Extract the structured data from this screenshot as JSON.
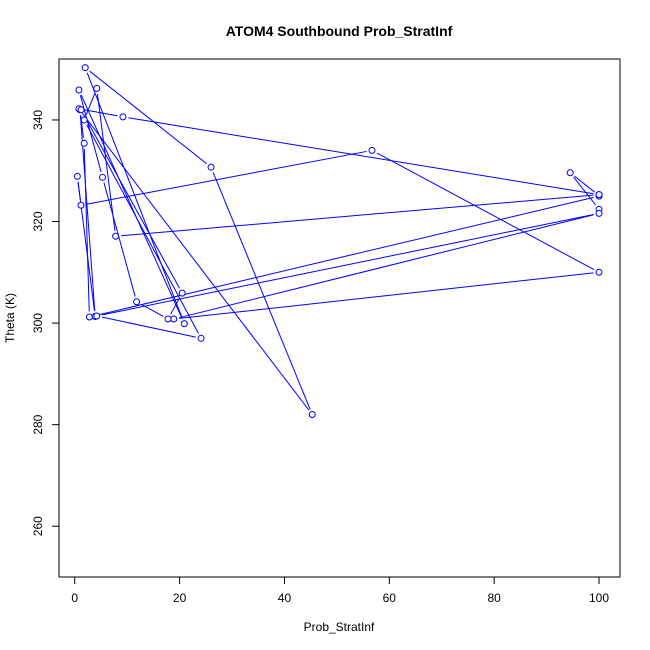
{
  "chart_data": {
    "type": "line",
    "title": "ATOM4 Southbound Prob_StratInf",
    "xlabel": "Prob_StratInf",
    "ylabel": "Theta (K)",
    "xlim": [
      -3,
      104
    ],
    "ylim": [
      250,
      352
    ],
    "x_ticks": [
      0,
      20,
      40,
      60,
      80,
      100
    ],
    "y_ticks": [
      260,
      280,
      300,
      320,
      340
    ],
    "grid": false,
    "marker": "open-circle",
    "color": "#0000ff",
    "series": [
      {
        "x": [
          100,
          94.5,
          100,
          100,
          100,
          2.8,
          1.8,
          1.0,
          3.9,
          0.5,
          1.2,
          56.7,
          100,
          18.9,
          100,
          4.2,
          24.1,
          1.8,
          4.2,
          7.8,
          100,
          9.2,
          0.8,
          45.3,
          26.0,
          2.0,
          20.9,
          0.8,
          5.3,
          11.8,
          17.8,
          20.5,
          1.2
        ],
        "y": [
          322.4,
          329.6,
          325.1,
          325.3,
          325.0,
          301.2,
          335.4,
          342.0,
          301.3,
          328.9,
          323.2,
          334.0,
          310.0,
          300.8,
          321.6,
          301.4,
          297.0,
          340.0,
          346.2,
          317.1,
          325.3,
          340.6,
          342.2,
          282.0,
          330.7,
          350.3,
          299.9,
          345.9,
          328.7,
          304.2,
          300.8,
          305.9,
          342.0
        ]
      }
    ]
  }
}
